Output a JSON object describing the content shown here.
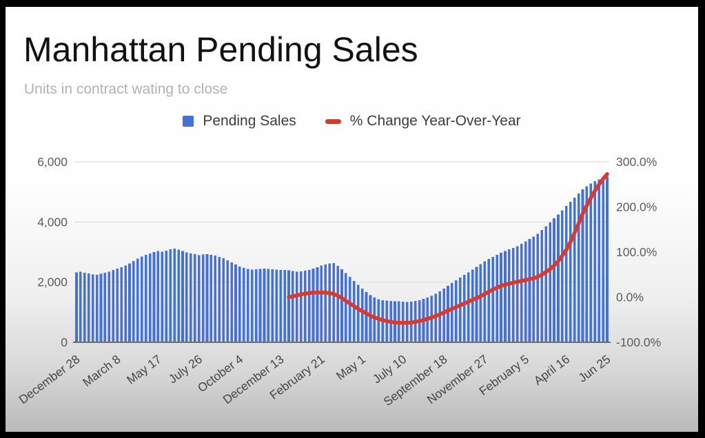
{
  "frame": {
    "background": "#000000"
  },
  "chart": {
    "title": "Manhattan Pending Sales",
    "subtitle": "Units in contract wating to close",
    "legend": [
      {
        "label": "Pending Sales",
        "swatch": "square",
        "color": "#4470db"
      },
      {
        "label": "% Change Year-Over-Year",
        "swatch": "dash",
        "color": "#db392a"
      }
    ]
  },
  "chart_data": {
    "type": "bar",
    "title": "Manhattan Pending Sales",
    "subtitle": "Units in contract wating to close",
    "x_tick_labels": [
      "December 28",
      "March 8",
      "May 17",
      "July 26",
      "October 4",
      "December 13",
      "February 21",
      "May 1",
      "July 10",
      "September 18",
      "November 27",
      "February 5",
      "April 16",
      "Jun 25"
    ],
    "x_tick_every": 10,
    "left_axis": {
      "ticks": [
        "6,000",
        "4,000",
        "2,000",
        "0"
      ],
      "min": 0,
      "max": 6000,
      "grid": true
    },
    "right_axis": {
      "ticks": [
        "300.0%",
        "200.0%",
        "100.0%",
        "0.0%",
        "-100.0%"
      ],
      "min": -100,
      "max": 300,
      "grid": false
    },
    "legend_position": "top",
    "series": [
      {
        "name": "Pending Sales",
        "type": "bar",
        "axis": "left",
        "color": "#4470db",
        "values": [
          2330,
          2350,
          2310,
          2290,
          2260,
          2250,
          2280,
          2310,
          2350,
          2400,
          2450,
          2500,
          2550,
          2620,
          2700,
          2780,
          2850,
          2910,
          2960,
          3000,
          3030,
          3010,
          3050,
          3090,
          3120,
          3080,
          3030,
          2990,
          2960,
          2930,
          2900,
          2920,
          2930,
          2910,
          2880,
          2840,
          2790,
          2730,
          2660,
          2590,
          2520,
          2470,
          2440,
          2420,
          2430,
          2440,
          2450,
          2440,
          2430,
          2420,
          2410,
          2400,
          2390,
          2370,
          2350,
          2360,
          2380,
          2410,
          2450,
          2500,
          2550,
          2590,
          2620,
          2630,
          2540,
          2430,
          2300,
          2170,
          2040,
          1910,
          1790,
          1670,
          1570,
          1490,
          1430,
          1400,
          1380,
          1370,
          1360,
          1360,
          1350,
          1340,
          1350,
          1370,
          1400,
          1440,
          1490,
          1550,
          1620,
          1700,
          1790,
          1880,
          1970,
          2060,
          2150,
          2240,
          2330,
          2420,
          2510,
          2600,
          2690,
          2770,
          2840,
          2910,
          2980,
          3040,
          3090,
          3140,
          3200,
          3270,
          3350,
          3430,
          3510,
          3610,
          3730,
          3860,
          3990,
          4120,
          4250,
          4390,
          4530,
          4670,
          4810,
          4950,
          5080,
          5190,
          5280,
          5360,
          5420,
          5470,
          5510
        ]
      },
      {
        "name": "% Change Year-Over-Year",
        "type": "line",
        "axis": "right",
        "color": "#db392a",
        "start_index": 52,
        "values": [
          0,
          2,
          4,
          6,
          8,
          9,
          10,
          10,
          10,
          10,
          9,
          7,
          3,
          -2,
          -8,
          -14,
          -20,
          -26,
          -31,
          -36,
          -41,
          -45,
          -48,
          -51,
          -53,
          -55,
          -56,
          -57,
          -57,
          -57,
          -56,
          -55,
          -53,
          -51,
          -48,
          -45,
          -42,
          -38,
          -34,
          -30,
          -26,
          -22,
          -18,
          -14,
          -10,
          -6,
          -2,
          2,
          7,
          12,
          17,
          21,
          25,
          28,
          30,
          32,
          34,
          36,
          38,
          40,
          42,
          45,
          50,
          56,
          62,
          70,
          80,
          92,
          105,
          122,
          142,
          163,
          185,
          203,
          220,
          236,
          250,
          262,
          273
        ]
      }
    ],
    "style": {
      "grid_color": "#e2e2e2",
      "axis_line_color": "#6e6e6e",
      "axis_label_color": "#5c5c5c",
      "x_label_color": "#454545"
    }
  }
}
